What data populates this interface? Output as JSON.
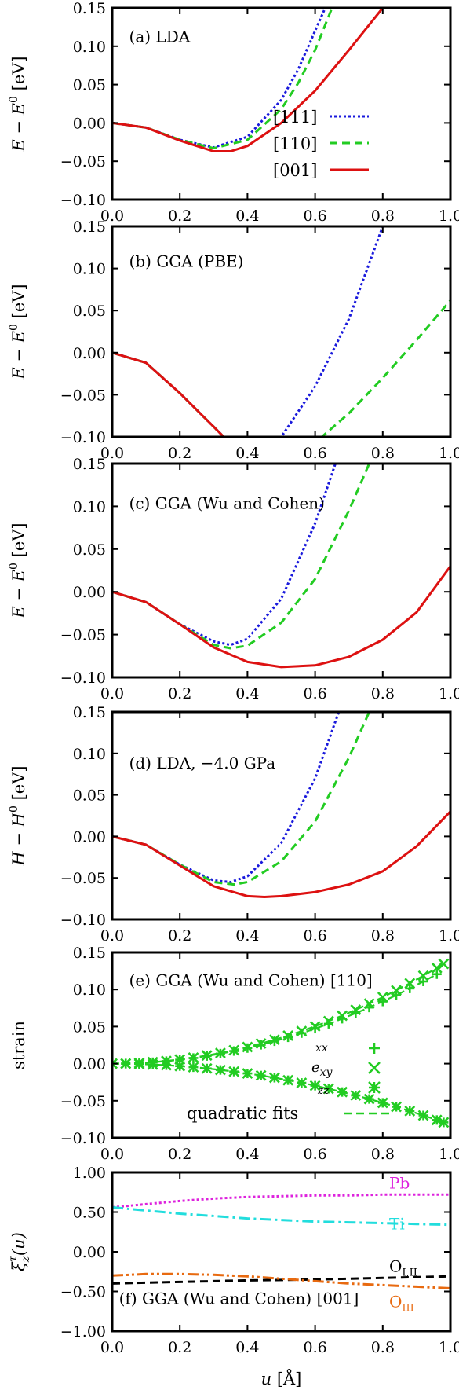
{
  "chart_data": [
    {
      "id": "a",
      "type": "line",
      "title": "(a) LDA",
      "ylabel": "E − E⁰ [eV]",
      "xlim": [
        0.0,
        1.0
      ],
      "ylim": [
        -0.1,
        0.15
      ],
      "xticks": [
        "0.0",
        "0.2",
        "0.4",
        "0.6",
        "0.8",
        "1.0"
      ],
      "yticks": [
        "0.15",
        "0.10",
        "0.05",
        "0.00",
        "−0.05",
        "−0.10"
      ],
      "legend": {
        "placement": "bottom-right",
        "entries": [
          "[111]",
          "[110]",
          "[001]"
        ]
      },
      "series": [
        {
          "name": "[111]",
          "color": "#1a1adc",
          "dash": "dotted",
          "x": [
            0.0,
            0.1,
            0.2,
            0.3,
            0.4,
            0.5,
            0.55,
            0.6,
            0.63
          ],
          "y": [
            0.0,
            -0.006,
            -0.022,
            -0.032,
            -0.018,
            0.03,
            0.07,
            0.12,
            0.15
          ]
        },
        {
          "name": "[110]",
          "color": "#22cc22",
          "dash": "dashed",
          "x": [
            0.0,
            0.1,
            0.2,
            0.3,
            0.4,
            0.5,
            0.55,
            0.6,
            0.65
          ],
          "y": [
            0.0,
            -0.006,
            -0.022,
            -0.033,
            -0.022,
            0.018,
            0.052,
            0.095,
            0.15
          ]
        },
        {
          "name": "[001]",
          "color": "#dd1111",
          "dash": "solid",
          "x": [
            0.0,
            0.1,
            0.2,
            0.3,
            0.35,
            0.4,
            0.5,
            0.6,
            0.7,
            0.8
          ],
          "y": [
            0.0,
            -0.006,
            -0.023,
            -0.037,
            -0.037,
            -0.03,
            0.0,
            0.042,
            0.095,
            0.15
          ]
        }
      ]
    },
    {
      "id": "b",
      "type": "line",
      "title": "(b) GGA (PBE)",
      "ylabel": "E − E⁰ [eV]",
      "xlim": [
        0.0,
        1.0
      ],
      "ylim": [
        -0.1,
        0.15
      ],
      "xticks": [
        "0.0",
        "0.2",
        "0.4",
        "0.6",
        "0.8",
        "1.0"
      ],
      "yticks": [
        "0.15",
        "0.10",
        "0.05",
        "0.00",
        "−0.05",
        "−0.10"
      ],
      "series": [
        {
          "name": "[111]",
          "color": "#1a1adc",
          "dash": "dotted",
          "x": [
            0.0,
            0.1,
            0.2,
            0.3,
            0.33,
            0.5,
            0.6,
            0.7,
            0.8
          ],
          "y": [
            0.0,
            -0.012,
            -0.048,
            -0.088,
            -0.1,
            -0.1,
            -0.04,
            0.04,
            0.15
          ]
        },
        {
          "name": "[110]",
          "color": "#22cc22",
          "dash": "dashed",
          "x": [
            0.0,
            0.1,
            0.2,
            0.3,
            0.33,
            0.62,
            0.7,
            0.8,
            0.9,
            1.0
          ],
          "y": [
            0.0,
            -0.012,
            -0.048,
            -0.088,
            -0.1,
            -0.1,
            -0.072,
            -0.03,
            0.015,
            0.062
          ]
        },
        {
          "name": "[001]",
          "color": "#dd1111",
          "dash": "solid",
          "x": [
            0.0,
            0.1,
            0.2,
            0.3,
            0.33
          ],
          "y": [
            0.0,
            -0.012,
            -0.048,
            -0.088,
            -0.1
          ]
        }
      ]
    },
    {
      "id": "c",
      "type": "line",
      "title": "(c) GGA (Wu and Cohen)",
      "ylabel": "E − E⁰ [eV]",
      "xlim": [
        0.0,
        1.0
      ],
      "ylim": [
        -0.1,
        0.15
      ],
      "xticks": [
        "0.0",
        "0.2",
        "0.4",
        "0.6",
        "0.8",
        "1.0"
      ],
      "yticks": [
        "0.15",
        "0.10",
        "0.05",
        "0.00",
        "−0.05",
        "−0.10"
      ],
      "series": [
        {
          "name": "[111]",
          "color": "#1a1adc",
          "dash": "dotted",
          "x": [
            0.0,
            0.1,
            0.2,
            0.3,
            0.35,
            0.4,
            0.5,
            0.6,
            0.66
          ],
          "y": [
            0.0,
            -0.012,
            -0.038,
            -0.058,
            -0.062,
            -0.055,
            -0.008,
            0.08,
            0.15
          ]
        },
        {
          "name": "[110]",
          "color": "#22cc22",
          "dash": "dashed",
          "x": [
            0.0,
            0.1,
            0.2,
            0.3,
            0.35,
            0.4,
            0.5,
            0.6,
            0.7,
            0.76
          ],
          "y": [
            0.0,
            -0.012,
            -0.038,
            -0.062,
            -0.066,
            -0.063,
            -0.036,
            0.015,
            0.095,
            0.15
          ]
        },
        {
          "name": "[001]",
          "color": "#dd1111",
          "dash": "solid",
          "x": [
            0.0,
            0.1,
            0.2,
            0.3,
            0.4,
            0.5,
            0.6,
            0.7,
            0.8,
            0.9,
            1.0
          ],
          "y": [
            0.0,
            -0.012,
            -0.038,
            -0.065,
            -0.082,
            -0.088,
            -0.086,
            -0.076,
            -0.056,
            -0.024,
            0.03
          ]
        }
      ]
    },
    {
      "id": "d",
      "type": "line",
      "title": "(d) LDA, −4.0 GPa",
      "ylabel": "H − H⁰ [eV]",
      "xlim": [
        0.0,
        1.0
      ],
      "ylim": [
        -0.1,
        0.15
      ],
      "xticks": [
        "0.0",
        "0.2",
        "0.4",
        "0.6",
        "0.8",
        "1.0"
      ],
      "yticks": [
        "0.15",
        "0.10",
        "0.05",
        "0.00",
        "−0.05",
        "−0.10"
      ],
      "series": [
        {
          "name": "[111]",
          "color": "#1a1adc",
          "dash": "dotted",
          "x": [
            0.0,
            0.1,
            0.2,
            0.3,
            0.35,
            0.4,
            0.5,
            0.6,
            0.67
          ],
          "y": [
            0.0,
            -0.01,
            -0.034,
            -0.053,
            -0.055,
            -0.048,
            -0.008,
            0.07,
            0.15
          ]
        },
        {
          "name": "[110]",
          "color": "#22cc22",
          "dash": "dashed",
          "x": [
            0.0,
            0.1,
            0.2,
            0.3,
            0.36,
            0.4,
            0.5,
            0.6,
            0.7,
            0.76
          ],
          "y": [
            0.0,
            -0.01,
            -0.034,
            -0.055,
            -0.058,
            -0.055,
            -0.03,
            0.018,
            0.095,
            0.15
          ]
        },
        {
          "name": "[001]",
          "color": "#dd1111",
          "dash": "solid",
          "x": [
            0.0,
            0.1,
            0.2,
            0.3,
            0.4,
            0.45,
            0.5,
            0.6,
            0.7,
            0.8,
            0.9,
            1.0
          ],
          "y": [
            0.0,
            -0.01,
            -0.035,
            -0.06,
            -0.072,
            -0.073,
            -0.072,
            -0.067,
            -0.058,
            -0.042,
            -0.012,
            0.03
          ]
        }
      ]
    },
    {
      "id": "e",
      "type": "scatter",
      "title": "(e) GGA (Wu and Cohen) [110]",
      "ylabel": "strain",
      "xlim": [
        0.0,
        1.0
      ],
      "ylim": [
        -0.1,
        0.15
      ],
      "xticks": [
        "0.0",
        "0.2",
        "0.4",
        "0.6",
        "0.8",
        "1.0"
      ],
      "yticks": [
        "0.15",
        "0.10",
        "0.05",
        "0.00",
        "−0.05",
        "−0.10"
      ],
      "legend": {
        "placement": "bottom-right",
        "entries": [
          "e_xx",
          "e_xy",
          "e_zz",
          "quadratic fits"
        ]
      },
      "series": [
        {
          "name": "e_xx",
          "color": "#22cc22",
          "marker": "plus",
          "x": [
            0.0,
            0.04,
            0.08,
            0.12,
            0.16,
            0.2,
            0.24,
            0.28,
            0.32,
            0.36,
            0.4,
            0.44,
            0.48,
            0.52,
            0.56,
            0.6,
            0.64,
            0.68,
            0.72,
            0.76,
            0.8,
            0.84,
            0.88,
            0.92,
            0.96
          ],
          "y": [
            0.0,
            0.0002,
            0.0008,
            0.0019,
            0.0034,
            0.0053,
            0.0076,
            0.0103,
            0.0135,
            0.017,
            0.021,
            0.0254,
            0.0302,
            0.0355,
            0.0411,
            0.0472,
            0.0537,
            0.0606,
            0.068,
            0.0757,
            0.0838,
            0.0924,
            0.1014,
            0.1108,
            0.1206
          ]
        },
        {
          "name": "e_xy",
          "color": "#22cc22",
          "marker": "cross",
          "x": [
            0.0,
            0.04,
            0.08,
            0.12,
            0.16,
            0.2,
            0.24,
            0.28,
            0.32,
            0.36,
            0.4,
            0.44,
            0.48,
            0.52,
            0.56,
            0.6,
            0.64,
            0.68,
            0.72,
            0.76,
            0.8,
            0.84,
            0.88,
            0.92,
            0.96,
            0.98
          ],
          "y": [
            0.0,
            0.0002,
            0.0009,
            0.002,
            0.0036,
            0.0056,
            0.0081,
            0.011,
            0.0143,
            0.0181,
            0.0224,
            0.0271,
            0.0322,
            0.0378,
            0.0439,
            0.0504,
            0.0573,
            0.0647,
            0.0726,
            0.0809,
            0.0896,
            0.0988,
            0.1084,
            0.1185,
            0.129,
            0.1345
          ]
        },
        {
          "name": "e_zz",
          "color": "#22cc22",
          "marker": "star",
          "x": [
            0.0,
            0.04,
            0.08,
            0.12,
            0.16,
            0.2,
            0.24,
            0.28,
            0.32,
            0.36,
            0.4,
            0.44,
            0.48,
            0.52,
            0.56,
            0.6,
            0.64,
            0.68,
            0.72,
            0.76,
            0.8,
            0.84,
            0.88,
            0.92,
            0.96,
            0.98
          ],
          "y": [
            0.0,
            -0.0001,
            -0.0005,
            -0.0012,
            -0.0021,
            -0.0033,
            -0.0048,
            -0.0065,
            -0.0085,
            -0.0107,
            -0.0132,
            -0.016,
            -0.019,
            -0.0223,
            -0.0259,
            -0.0297,
            -0.0338,
            -0.0382,
            -0.0428,
            -0.0477,
            -0.0528,
            -0.0582,
            -0.0639,
            -0.0698,
            -0.076,
            -0.0792
          ]
        }
      ]
    },
    {
      "id": "f",
      "type": "line",
      "title": "(f) GGA (Wu and Cohen) [001]",
      "ylabel": "ξ_z^τ(u)",
      "xlabel": "u [Å]",
      "xlim": [
        0.0,
        1.0
      ],
      "ylim": [
        -1.0,
        1.0
      ],
      "xticks": [
        "0.0",
        "0.2",
        "0.4",
        "0.6",
        "0.8",
        "1.0"
      ],
      "yticks": [
        "1.00",
        "0.50",
        "0.00",
        "−0.50",
        "−1.00"
      ],
      "series": [
        {
          "name": "Pb",
          "color": "#dd22dd",
          "dash": "dotted",
          "x": [
            0.0,
            0.1,
            0.2,
            0.3,
            0.4,
            0.5,
            0.6,
            0.7,
            0.8,
            0.9,
            1.0
          ],
          "y": [
            0.56,
            0.6,
            0.64,
            0.67,
            0.69,
            0.7,
            0.71,
            0.71,
            0.72,
            0.72,
            0.72
          ]
        },
        {
          "name": "Ti",
          "color": "#22dddd",
          "dash": "dash-dot",
          "x": [
            0.0,
            0.1,
            0.2,
            0.3,
            0.4,
            0.5,
            0.6,
            0.7,
            0.8,
            0.9,
            1.0
          ],
          "y": [
            0.56,
            0.52,
            0.48,
            0.45,
            0.42,
            0.4,
            0.38,
            0.37,
            0.36,
            0.35,
            0.34
          ]
        },
        {
          "name": "O_I,II",
          "color": "#000000",
          "dash": "dashed",
          "x": [
            0.0,
            0.2,
            0.4,
            0.6,
            0.8,
            1.0
          ],
          "y": [
            -0.4,
            -0.38,
            -0.36,
            -0.35,
            -0.33,
            -0.31
          ]
        },
        {
          "name": "O_III",
          "color": "#e86a10",
          "dash": "dash-dot-dot",
          "x": [
            0.0,
            0.1,
            0.2,
            0.3,
            0.4,
            0.5,
            0.6,
            0.7,
            0.8,
            0.9,
            1.0
          ],
          "y": [
            -0.3,
            -0.28,
            -0.28,
            -0.29,
            -0.31,
            -0.34,
            -0.37,
            -0.4,
            -0.42,
            -0.44,
            -0.46
          ]
        }
      ]
    }
  ],
  "labels": {
    "ylabel_energy_var": "E",
    "ylabel_energy_minus": " − ",
    "ylabel_energy_sup": "0",
    "ylabel_unit": " [eV]",
    "ylabel_enthalpy_var": "H",
    "ylabel_strain": "strain",
    "ylabel_xi": "ξ",
    "ylabel_xi_sup": "τ",
    "ylabel_xi_sub": "z",
    "ylabel_xi_arg": "(u)",
    "xlabel_var": "u",
    "xlabel_unit": " [Å]",
    "e_legend_xx": "xx",
    "e_legend_xy": "e",
    "e_legend_xy_sub": "xy",
    "e_legend_zz_sub": "zz",
    "e_legend_fits": "quadratic fits",
    "f_pb": "Pb",
    "f_ti": "Ti",
    "f_o12": "O",
    "f_o12_sub": "I,II",
    "f_o3": "O",
    "f_o3_sub": "III"
  }
}
